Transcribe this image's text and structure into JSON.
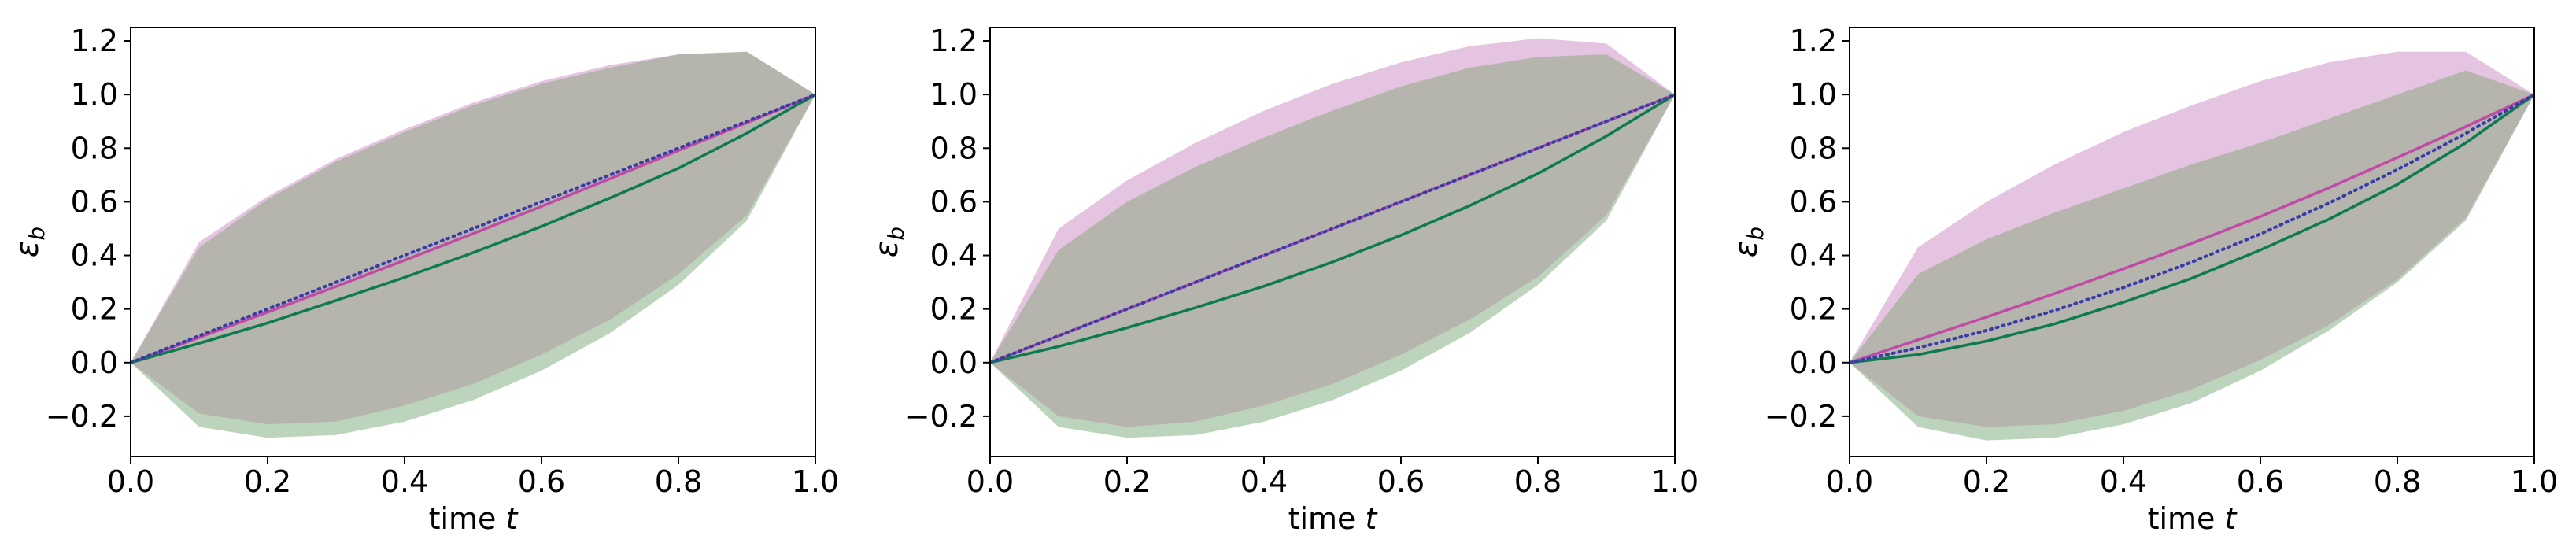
{
  "colors": {
    "magenta": "#c04aa5",
    "magenta_band": "#e4c4e0",
    "green": "#0e7a4f",
    "green_band": "#bcd4bb",
    "overlap": "#b5b5ae",
    "dotted": "#3a3aa8"
  },
  "chart_data": [
    {
      "type": "line",
      "xlabel_prefix": "time ",
      "xlabel_var": "t",
      "ylabel_main": "ε",
      "ylabel_sub": "b",
      "xlim": [
        0.0,
        1.0
      ],
      "ylim": [
        -0.35,
        1.25
      ],
      "xticks": [
        "0.0",
        "0.2",
        "0.4",
        "0.6",
        "0.8",
        "1.0"
      ],
      "yticks": [
        "−0.2",
        "0.0",
        "0.2",
        "0.4",
        "0.6",
        "0.8",
        "1.0",
        "1.2"
      ],
      "ytick_values": [
        -0.2,
        0.0,
        0.2,
        0.4,
        0.6,
        0.8,
        1.0,
        1.2
      ],
      "x": [
        0,
        0.1,
        0.2,
        0.3,
        0.4,
        0.5,
        0.6,
        0.7,
        0.8,
        0.9,
        1.0
      ],
      "series": [
        {
          "color_key": "magenta",
          "style": "solid",
          "values": [
            0,
            0.094,
            0.188,
            0.284,
            0.382,
            0.481,
            0.583,
            0.686,
            0.791,
            0.895,
            1.0
          ],
          "band": {
            "upper": [
              0,
              0.45,
              0.62,
              0.76,
              0.87,
              0.97,
              1.05,
              1.11,
              1.15,
              1.16,
              1.0
            ],
            "lower": [
              0,
              -0.19,
              -0.23,
              -0.22,
              -0.16,
              -0.08,
              0.03,
              0.16,
              0.33,
              0.55,
              1.0
            ]
          }
        },
        {
          "color_key": "green",
          "style": "solid",
          "values": [
            0,
            0.072,
            0.148,
            0.232,
            0.318,
            0.41,
            0.508,
            0.614,
            0.725,
            0.856,
            1.0
          ],
          "band": {
            "upper": [
              0,
              0.43,
              0.61,
              0.75,
              0.86,
              0.96,
              1.04,
              1.1,
              1.15,
              1.16,
              1.0
            ],
            "lower": [
              0,
              -0.24,
              -0.28,
              -0.27,
              -0.22,
              -0.14,
              -0.03,
              0.11,
              0.29,
              0.53,
              1.0
            ]
          }
        },
        {
          "color_key": "dotted",
          "style": "dotted",
          "values": [
            0,
            0.1,
            0.2,
            0.3,
            0.4,
            0.5,
            0.6,
            0.7,
            0.8,
            0.9,
            1.0
          ]
        }
      ]
    },
    {
      "type": "line",
      "xlabel_prefix": "time ",
      "xlabel_var": "t",
      "ylabel_main": "ε",
      "ylabel_sub": "b",
      "xlim": [
        0.0,
        1.0
      ],
      "ylim": [
        -0.35,
        1.25
      ],
      "xticks": [
        "0.0",
        "0.2",
        "0.4",
        "0.6",
        "0.8",
        "1.0"
      ],
      "yticks": [
        "−0.2",
        "0.0",
        "0.2",
        "0.4",
        "0.6",
        "0.8",
        "1.0",
        "1.2"
      ],
      "ytick_values": [
        -0.2,
        0.0,
        0.2,
        0.4,
        0.6,
        0.8,
        1.0,
        1.2
      ],
      "x": [
        0,
        0.1,
        0.2,
        0.3,
        0.4,
        0.5,
        0.6,
        0.7,
        0.8,
        0.9,
        1.0
      ],
      "series": [
        {
          "color_key": "magenta",
          "style": "solid",
          "values": [
            0,
            0.1,
            0.2,
            0.3,
            0.4,
            0.5,
            0.6,
            0.7,
            0.8,
            0.9,
            1.0
          ],
          "band": {
            "upper": [
              0,
              0.5,
              0.68,
              0.82,
              0.94,
              1.04,
              1.12,
              1.18,
              1.21,
              1.19,
              1.0
            ],
            "lower": [
              0,
              -0.2,
              -0.24,
              -0.22,
              -0.16,
              -0.08,
              0.03,
              0.16,
              0.32,
              0.55,
              1.0
            ]
          }
        },
        {
          "color_key": "green",
          "style": "solid",
          "values": [
            0,
            0.06,
            0.13,
            0.205,
            0.285,
            0.375,
            0.475,
            0.585,
            0.705,
            0.845,
            1.0
          ],
          "band": {
            "upper": [
              0,
              0.42,
              0.6,
              0.73,
              0.84,
              0.94,
              1.03,
              1.1,
              1.14,
              1.15,
              1.0
            ],
            "lower": [
              0,
              -0.24,
              -0.28,
              -0.27,
              -0.22,
              -0.14,
              -0.03,
              0.11,
              0.29,
              0.53,
              1.0
            ]
          }
        },
        {
          "color_key": "dotted",
          "style": "dotted",
          "values": [
            0,
            0.1,
            0.2,
            0.3,
            0.4,
            0.5,
            0.6,
            0.7,
            0.8,
            0.9,
            1.0
          ]
        }
      ]
    },
    {
      "type": "line",
      "xlabel_prefix": "time ",
      "xlabel_var": "t",
      "ylabel_main": "ε",
      "ylabel_sub": "b",
      "xlim": [
        0.0,
        1.0
      ],
      "ylim": [
        -0.35,
        1.25
      ],
      "xticks": [
        "0.0",
        "0.2",
        "0.4",
        "0.6",
        "0.8",
        "1.0"
      ],
      "yticks": [
        "−0.2",
        "0.0",
        "0.2",
        "0.4",
        "0.6",
        "0.8",
        "1.0",
        "1.2"
      ],
      "ytick_values": [
        -0.2,
        0.0,
        0.2,
        0.4,
        0.6,
        0.8,
        1.0,
        1.2
      ],
      "x": [
        0,
        0.1,
        0.2,
        0.3,
        0.4,
        0.5,
        0.6,
        0.7,
        0.8,
        0.9,
        1.0
      ],
      "series": [
        {
          "color_key": "magenta",
          "style": "solid",
          "values": [
            0,
            0.085,
            0.17,
            0.258,
            0.35,
            0.445,
            0.545,
            0.652,
            0.765,
            0.88,
            1.0
          ],
          "band": {
            "upper": [
              0,
              0.43,
              0.6,
              0.74,
              0.86,
              0.96,
              1.05,
              1.12,
              1.16,
              1.16,
              1.0
            ],
            "lower": [
              0,
              -0.2,
              -0.24,
              -0.23,
              -0.18,
              -0.1,
              0.01,
              0.14,
              0.31,
              0.54,
              1.0
            ]
          }
        },
        {
          "color_key": "green",
          "style": "solid",
          "values": [
            0,
            0.03,
            0.08,
            0.145,
            0.225,
            0.315,
            0.42,
            0.535,
            0.665,
            0.82,
            1.0
          ],
          "band": {
            "upper": [
              0,
              0.33,
              0.46,
              0.56,
              0.65,
              0.74,
              0.82,
              0.91,
              1.0,
              1.09,
              1.0
            ],
            "lower": [
              0,
              -0.24,
              -0.29,
              -0.28,
              -0.23,
              -0.15,
              -0.03,
              0.12,
              0.3,
              0.53,
              1.0
            ]
          }
        },
        {
          "color_key": "dotted",
          "style": "dotted",
          "values": [
            0,
            0.055,
            0.12,
            0.195,
            0.28,
            0.375,
            0.48,
            0.595,
            0.72,
            0.855,
            1.0
          ]
        }
      ]
    }
  ]
}
